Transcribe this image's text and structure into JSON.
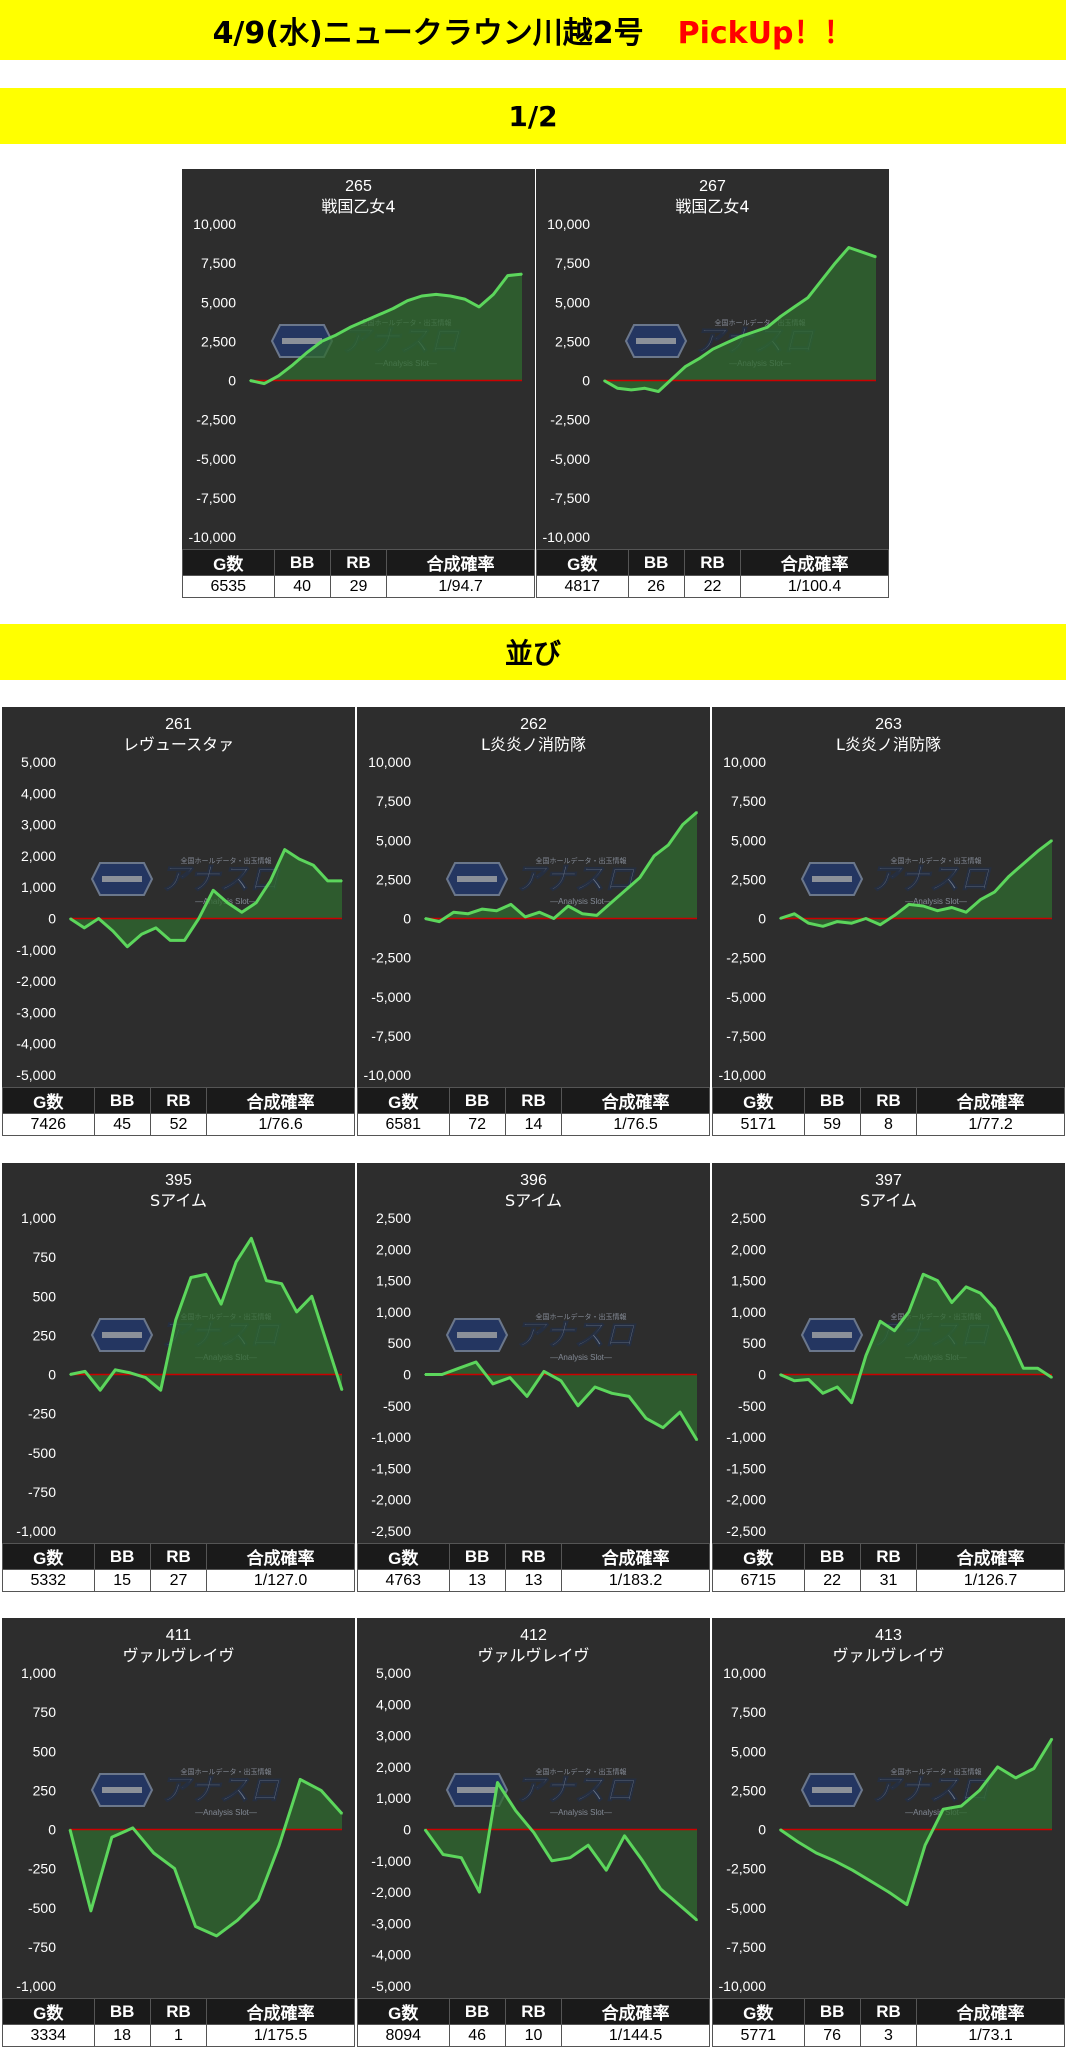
{
  "header": {
    "title": "4/9(水)ニュークラウン川越2号",
    "pickup": "PickUp！！",
    "section_half": "1/2",
    "section_line": "並び"
  },
  "table_headers": [
    "G数",
    "BB",
    "RB",
    "合成確率"
  ],
  "colors": {
    "banner": "#ffff00",
    "panel_bg": "#2d2d2d",
    "line": "#5cd65c",
    "fill": "#2f6b2f",
    "zero_line": "#cc0000"
  },
  "logo": {
    "text": "アナスロ",
    "sub": "—Analysis Slot—",
    "top": "全国ホールデータ・出玉情報"
  },
  "chart_data": [
    {
      "type": "area",
      "machine": "265",
      "name": "戦国乙女4",
      "ylim": [
        -10000,
        10000
      ],
      "yticks": [
        "10,000",
        "7,500",
        "5,000",
        "2,500",
        "0",
        "-2,500",
        "-5,000",
        "-7,500",
        "-10,000"
      ],
      "values": [
        0,
        -200,
        300,
        1000,
        1800,
        2500,
        2900,
        3400,
        3800,
        4200,
        4600,
        5100,
        5400,
        5500,
        5400,
        5200,
        4700,
        5500,
        6700,
        6800
      ],
      "stats": [
        "6535",
        "40",
        "29",
        "1/94.7"
      ]
    },
    {
      "type": "area",
      "machine": "267",
      "name": "戦国乙女4",
      "ylim": [
        -10000,
        10000
      ],
      "yticks": [
        "10,000",
        "7,500",
        "5,000",
        "2,500",
        "0",
        "-2,500",
        "-5,000",
        "-7,500",
        "-10,000"
      ],
      "values": [
        0,
        -500,
        -600,
        -500,
        -700,
        100,
        900,
        1400,
        2000,
        2400,
        2800,
        3100,
        3400,
        4100,
        4700,
        5300,
        6400,
        7500,
        8500,
        8200,
        7900
      ],
      "stats": [
        "4817",
        "26",
        "22",
        "1/100.4"
      ]
    },
    {
      "type": "area",
      "machine": "261",
      "name": "レヴュースタァ",
      "ylim": [
        -5000,
        5000
      ],
      "yticks": [
        "5,000",
        "4,000",
        "3,000",
        "2,000",
        "1,000",
        "0",
        "-1,000",
        "-2,000",
        "-3,000",
        "-4,000",
        "-5,000"
      ],
      "values": [
        0,
        -300,
        0,
        -400,
        -900,
        -500,
        -300,
        -700,
        -700,
        0,
        900,
        500,
        200,
        500,
        1200,
        2200,
        1900,
        1700,
        1200,
        1200
      ],
      "stats": [
        "7426",
        "45",
        "52",
        "1/76.6"
      ]
    },
    {
      "type": "area",
      "machine": "262",
      "name": "L炎炎ノ消防隊",
      "ylim": [
        -10000,
        10000
      ],
      "yticks": [
        "10,000",
        "7,500",
        "5,000",
        "2,500",
        "0",
        "-2,500",
        "-5,000",
        "-7,500",
        "-10,000"
      ],
      "values": [
        0,
        -200,
        400,
        300,
        600,
        500,
        900,
        100,
        400,
        0,
        800,
        300,
        200,
        1000,
        1800,
        2600,
        4000,
        4700,
        6000,
        6800
      ],
      "stats": [
        "6581",
        "72",
        "14",
        "1/76.5"
      ]
    },
    {
      "type": "area",
      "machine": "263",
      "name": "L炎炎ノ消防隊",
      "ylim": [
        -10000,
        10000
      ],
      "yticks": [
        "10,000",
        "7,500",
        "5,000",
        "2,500",
        "0",
        "-2,500",
        "-5,000",
        "-7,500",
        "-10,000"
      ],
      "values": [
        0,
        300,
        -300,
        -500,
        -200,
        -300,
        0,
        -400,
        200,
        900,
        800,
        500,
        700,
        400,
        1200,
        1700,
        2700,
        3500,
        4300,
        5000
      ],
      "stats": [
        "5171",
        "59",
        "8",
        "1/77.2"
      ]
    },
    {
      "type": "area",
      "machine": "395",
      "name": "Sアイム",
      "ylim": [
        -1000,
        1000
      ],
      "yticks": [
        "1,000",
        "750",
        "500",
        "250",
        "0",
        "-250",
        "-500",
        "-750",
        "-1,000"
      ],
      "values": [
        0,
        20,
        -100,
        30,
        10,
        -20,
        -100,
        350,
        620,
        640,
        450,
        720,
        870,
        600,
        580,
        400,
        500,
        200,
        -100
      ],
      "stats": [
        "5332",
        "15",
        "27",
        "1/127.0"
      ]
    },
    {
      "type": "area",
      "machine": "396",
      "name": "Sアイム",
      "ylim": [
        -2500,
        2500
      ],
      "yticks": [
        "2,500",
        "2,000",
        "1,500",
        "1,000",
        "500",
        "0",
        "-500",
        "-1,000",
        "-1,500",
        "-2,000",
        "-2,500"
      ],
      "values": [
        0,
        0,
        100,
        200,
        -150,
        -50,
        -350,
        50,
        -100,
        -500,
        -200,
        -300,
        -350,
        -700,
        -850,
        -600,
        -1050
      ],
      "stats": [
        "4763",
        "13",
        "13",
        "1/183.2"
      ]
    },
    {
      "type": "area",
      "machine": "397",
      "name": "Sアイム",
      "ylim": [
        -2500,
        2500
      ],
      "yticks": [
        "2,500",
        "2,000",
        "1,500",
        "1,000",
        "500",
        "0",
        "-500",
        "-1,000",
        "-1,500",
        "-2,000",
        "-2,500"
      ],
      "values": [
        0,
        -100,
        -80,
        -300,
        -200,
        -450,
        300,
        850,
        700,
        1000,
        1600,
        1500,
        1150,
        1400,
        1300,
        1050,
        600,
        100,
        100,
        -50
      ],
      "stats": [
        "6715",
        "22",
        "31",
        "1/126.7"
      ]
    },
    {
      "type": "area",
      "machine": "411",
      "name": "ヴァルヴレイヴ",
      "ylim": [
        -1000,
        1000
      ],
      "yticks": [
        "1,000",
        "750",
        "500",
        "250",
        "0",
        "-250",
        "-500",
        "-750",
        "-1,000"
      ],
      "values": [
        0,
        -520,
        -50,
        10,
        -150,
        -250,
        -620,
        -680,
        -580,
        -450,
        -100,
        320,
        250,
        100
      ],
      "stats": [
        "3334",
        "18",
        "1",
        "1/175.5"
      ]
    },
    {
      "type": "area",
      "machine": "412",
      "name": "ヴァルヴレイヴ",
      "ylim": [
        -5000,
        5000
      ],
      "yticks": [
        "5,000",
        "4,000",
        "3,000",
        "2,000",
        "1,000",
        "0",
        "-1,000",
        "-2,000",
        "-3,000",
        "-4,000",
        "-5,000"
      ],
      "values": [
        0,
        -800,
        -900,
        -2000,
        1500,
        600,
        -100,
        -1000,
        -900,
        -500,
        -1300,
        -200,
        -1000,
        -1900,
        -2400,
        -2900
      ],
      "stats": [
        "8094",
        "46",
        "10",
        "1/144.5"
      ]
    },
    {
      "type": "area",
      "machine": "413",
      "name": "ヴァルヴレイヴ",
      "ylim": [
        -10000,
        10000
      ],
      "yticks": [
        "10,000",
        "7,500",
        "5,000",
        "2,500",
        "0",
        "-2,500",
        "-5,000",
        "-7,500",
        "-10,000"
      ],
      "values": [
        0,
        -800,
        -1500,
        -2000,
        -2600,
        -3300,
        -4000,
        -4800,
        -1000,
        1300,
        1500,
        2500,
        4000,
        3300,
        3900,
        5800
      ],
      "stats": [
        "5771",
        "76",
        "3",
        "1/73.1"
      ]
    }
  ]
}
